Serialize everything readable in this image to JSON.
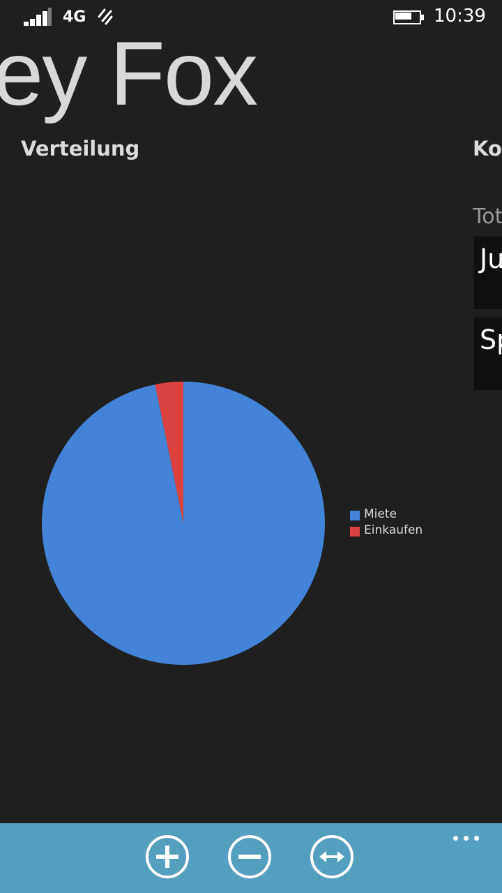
{
  "status_bar": {
    "network": "4G",
    "time": "10:39",
    "battery_level": 0.75,
    "signal_bars": 4,
    "icons": {
      "signal": "signal-strength-icon",
      "data_sense": "data-sense-icon",
      "battery": "battery-icon"
    }
  },
  "panorama": {
    "title": "ey Fox",
    "sections": [
      {
        "title": "Verteilung"
      },
      {
        "title": "Kor"
      }
    ],
    "peek": {
      "total_label": "Tot",
      "tiles": [
        {
          "text": "Ju"
        },
        {
          "text": "Sp"
        }
      ]
    }
  },
  "chart_data": {
    "type": "pie",
    "categories": [
      "Miete",
      "Einkaufen"
    ],
    "values": [
      96.8,
      3.2
    ],
    "colors": [
      "#4384d8",
      "#dc4340"
    ],
    "title": "",
    "legend_position": "right"
  },
  "app_bar": {
    "background": "#539fbf",
    "buttons": [
      {
        "name": "add-button",
        "icon": "plus-icon"
      },
      {
        "name": "remove-button",
        "icon": "minus-icon"
      },
      {
        "name": "transfer-button",
        "icon": "double-arrow-icon"
      }
    ],
    "more_icon": "ellipsis-icon"
  }
}
